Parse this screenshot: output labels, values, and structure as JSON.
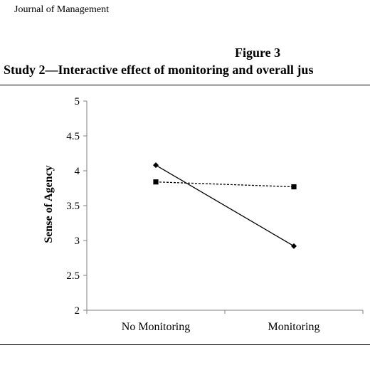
{
  "page": {
    "header": "Journal of Management",
    "figure_label": "Figure 3",
    "figure_title": "Study 2—Interactive effect of monitoring and overall jus"
  },
  "chart_data": {
    "type": "line",
    "title": "",
    "xlabel": "",
    "ylabel": "Sense of Agency",
    "categories": [
      "No Monitoring",
      "Monitoring"
    ],
    "ylim": [
      2,
      5
    ],
    "yticks": [
      "2",
      "2.5",
      "3",
      "3.5",
      "4",
      "4.5",
      "5"
    ],
    "grid": false,
    "legend": "none visible",
    "series": [
      {
        "values": [
          4.08,
          2.92
        ],
        "line_style": "solid",
        "marker": "diamond",
        "color": "#000000"
      },
      {
        "values": [
          3.84,
          3.77
        ],
        "line_style": "dashed",
        "marker": "square",
        "color": "#000000"
      }
    ]
  }
}
